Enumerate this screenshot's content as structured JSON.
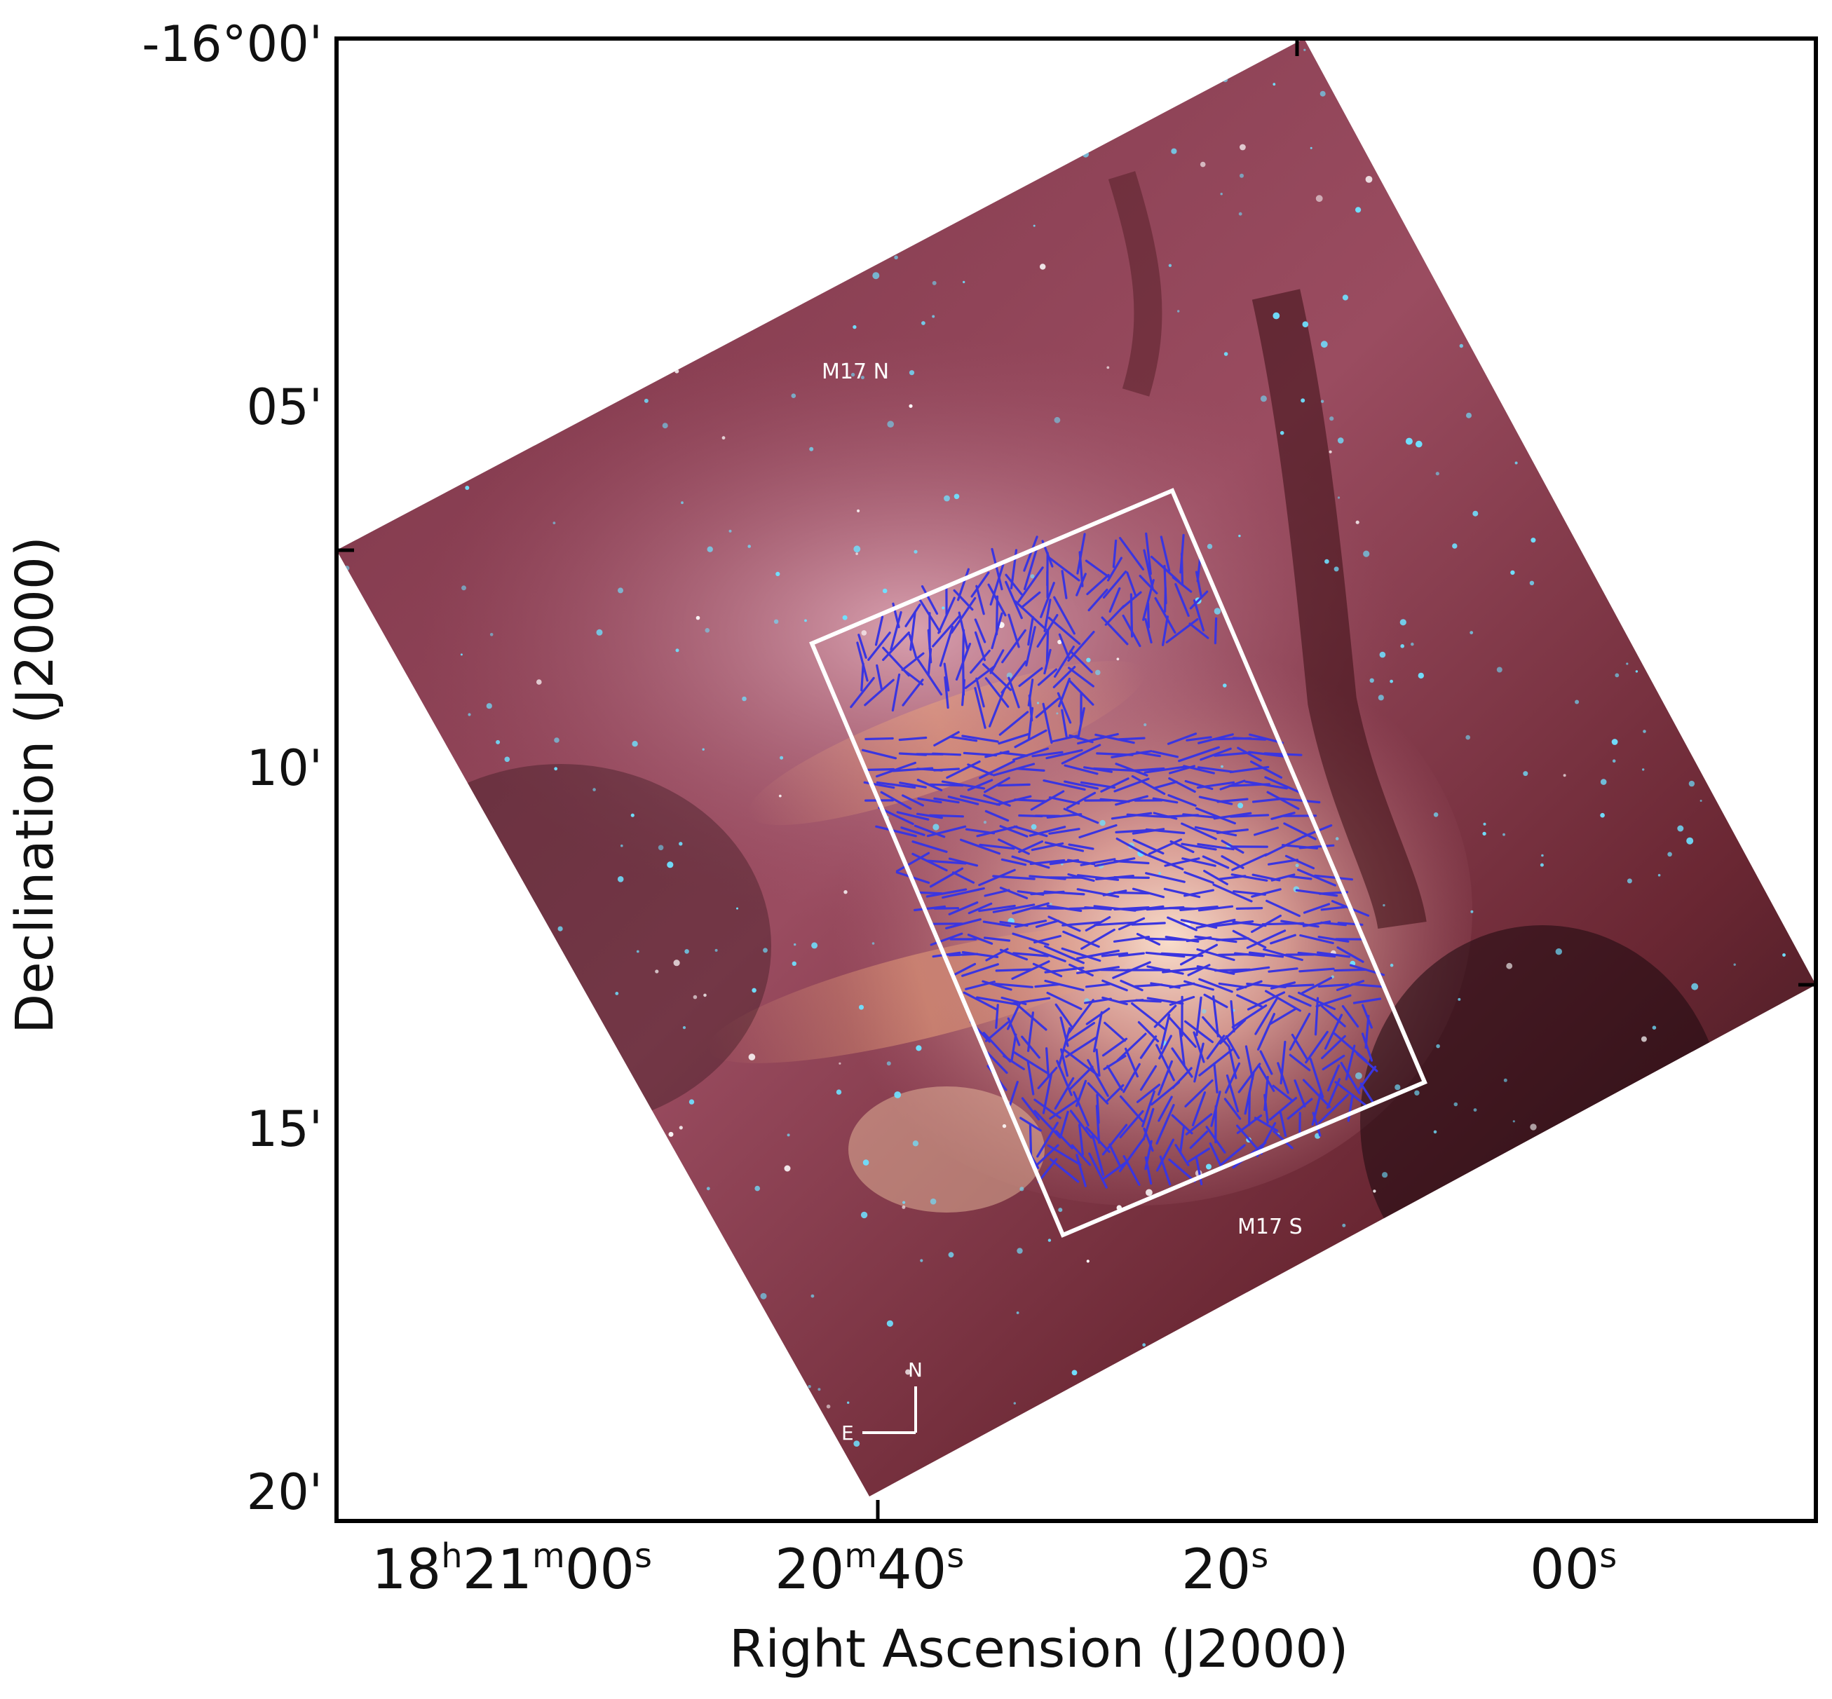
{
  "figure": {
    "axes": {
      "xlabel": "Right Ascension (J2000)",
      "ylabel": "Declination (J2000)",
      "dec_ticks": [
        "-16°00'",
        "05'",
        "10'",
        "15'",
        "20'"
      ],
      "ra_ticks": [
        {
          "parts": [
            [
              "18",
              "h"
            ],
            [
              "21",
              "m"
            ],
            [
              "00",
              "s"
            ]
          ]
        },
        {
          "parts": [
            [
              "20",
              "m"
            ],
            [
              "40",
              "s"
            ]
          ]
        },
        {
          "parts": [
            [
              "20",
              "s"
            ]
          ]
        },
        {
          "parts": [
            [
              "00",
              "s"
            ]
          ]
        }
      ]
    },
    "annotations": {
      "region_north": "M17 N",
      "region_south": "M17 S",
      "compass_north": "N",
      "compass_east": "E"
    },
    "colors": {
      "frame": "#000000",
      "box": "#ffffff",
      "vectors": "#3a35e0",
      "nebula_core": "#f2c3b0",
      "nebula_mid": "#b86a7e",
      "nebula_dark": "#5a1f2a",
      "stars": "#6fe0ff"
    }
  }
}
